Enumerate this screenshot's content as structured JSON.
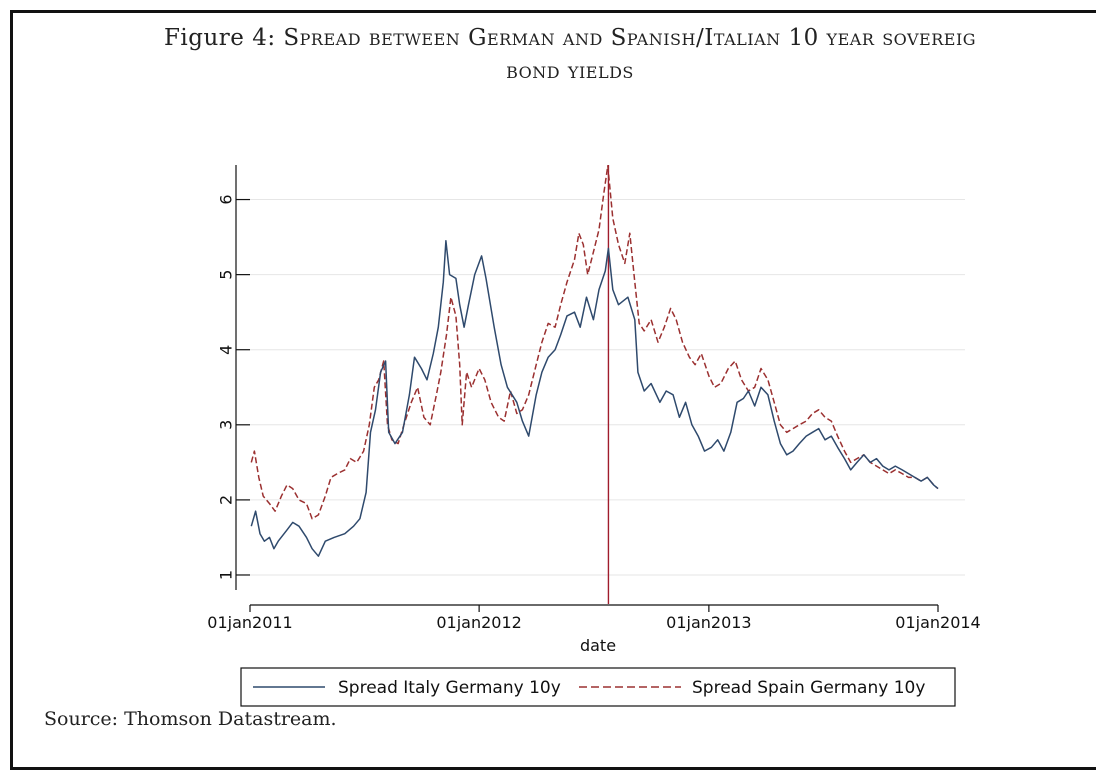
{
  "figure": {
    "title_prefix": "Figure 4:",
    "title_line1": "Spread between German and Spanish/Italian 10 year sovereig",
    "title_line2": "bond yields",
    "source": "Source: Thomson Datastream."
  },
  "chart_data": {
    "type": "line",
    "title": "",
    "xlabel": "date",
    "ylabel": "",
    "xlim": [
      "2011-01-01",
      "2014-01-01"
    ],
    "ylim": [
      0.8,
      6.5
    ],
    "yticks": [
      1,
      2,
      3,
      4,
      5,
      6
    ],
    "xticks": [
      "01jan2011",
      "01jan2012",
      "01jan2013",
      "01jan2014"
    ],
    "xtick_dates": [
      "2011-01-01",
      "2012-01-01",
      "2013-01-01",
      "2014-01-01"
    ],
    "grid": "horizontal",
    "legend_position": "bottom",
    "vline": {
      "x": "2012-07-25",
      "color": "#a01c2c"
    },
    "series": [
      {
        "name": "Spread Italy Germany 10y",
        "style": "solid",
        "color": "#2f4a6d",
        "points": [
          [
            "2011-01-03",
            1.65
          ],
          [
            "2011-01-10",
            1.85
          ],
          [
            "2011-01-17",
            1.55
          ],
          [
            "2011-01-24",
            1.45
          ],
          [
            "2011-02-01",
            1.5
          ],
          [
            "2011-02-08",
            1.35
          ],
          [
            "2011-02-15",
            1.45
          ],
          [
            "2011-03-01",
            1.6
          ],
          [
            "2011-03-10",
            1.7
          ],
          [
            "2011-03-20",
            1.65
          ],
          [
            "2011-04-01",
            1.5
          ],
          [
            "2011-04-10",
            1.35
          ],
          [
            "2011-04-20",
            1.25
          ],
          [
            "2011-05-01",
            1.45
          ],
          [
            "2011-05-15",
            1.5
          ],
          [
            "2011-06-01",
            1.55
          ],
          [
            "2011-06-15",
            1.65
          ],
          [
            "2011-06-25",
            1.75
          ],
          [
            "2011-07-05",
            2.1
          ],
          [
            "2011-07-12",
            2.9
          ],
          [
            "2011-07-20",
            3.2
          ],
          [
            "2011-07-28",
            3.7
          ],
          [
            "2011-08-05",
            3.85
          ],
          [
            "2011-08-10",
            2.9
          ],
          [
            "2011-08-20",
            2.75
          ],
          [
            "2011-09-01",
            2.9
          ],
          [
            "2011-09-12",
            3.4
          ],
          [
            "2011-09-20",
            3.9
          ],
          [
            "2011-10-01",
            3.75
          ],
          [
            "2011-10-10",
            3.6
          ],
          [
            "2011-10-20",
            3.95
          ],
          [
            "2011-10-28",
            4.3
          ],
          [
            "2011-11-05",
            4.9
          ],
          [
            "2011-11-09",
            5.45
          ],
          [
            "2011-11-15",
            5.0
          ],
          [
            "2011-11-25",
            4.95
          ],
          [
            "2011-12-01",
            4.6
          ],
          [
            "2011-12-08",
            4.3
          ],
          [
            "2011-12-15",
            4.6
          ],
          [
            "2011-12-25",
            5.0
          ],
          [
            "2012-01-05",
            5.25
          ],
          [
            "2012-01-12",
            4.95
          ],
          [
            "2012-01-25",
            4.3
          ],
          [
            "2012-02-05",
            3.8
          ],
          [
            "2012-02-15",
            3.5
          ],
          [
            "2012-03-01",
            3.3
          ],
          [
            "2012-03-10",
            3.05
          ],
          [
            "2012-03-20",
            2.85
          ],
          [
            "2012-04-01",
            3.4
          ],
          [
            "2012-04-10",
            3.7
          ],
          [
            "2012-04-20",
            3.9
          ],
          [
            "2012-05-01",
            4.0
          ],
          [
            "2012-05-10",
            4.2
          ],
          [
            "2012-05-20",
            4.45
          ],
          [
            "2012-06-01",
            4.5
          ],
          [
            "2012-06-10",
            4.3
          ],
          [
            "2012-06-20",
            4.7
          ],
          [
            "2012-07-01",
            4.4
          ],
          [
            "2012-07-10",
            4.8
          ],
          [
            "2012-07-20",
            5.05
          ],
          [
            "2012-07-25",
            5.35
          ],
          [
            "2012-08-01",
            4.8
          ],
          [
            "2012-08-10",
            4.6
          ],
          [
            "2012-08-25",
            4.7
          ],
          [
            "2012-09-05",
            4.4
          ],
          [
            "2012-09-10",
            3.7
          ],
          [
            "2012-09-20",
            3.45
          ],
          [
            "2012-10-01",
            3.55
          ],
          [
            "2012-10-15",
            3.3
          ],
          [
            "2012-10-25",
            3.45
          ],
          [
            "2012-11-05",
            3.4
          ],
          [
            "2012-11-15",
            3.1
          ],
          [
            "2012-11-25",
            3.3
          ],
          [
            "2012-12-05",
            3.0
          ],
          [
            "2012-12-15",
            2.85
          ],
          [
            "2012-12-25",
            2.65
          ],
          [
            "2013-01-05",
            2.7
          ],
          [
            "2013-01-15",
            2.8
          ],
          [
            "2013-01-25",
            2.65
          ],
          [
            "2013-02-05",
            2.9
          ],
          [
            "2013-02-15",
            3.3
          ],
          [
            "2013-02-25",
            3.35
          ],
          [
            "2013-03-05",
            3.45
          ],
          [
            "2013-03-15",
            3.25
          ],
          [
            "2013-03-25",
            3.5
          ],
          [
            "2013-04-05",
            3.4
          ],
          [
            "2013-04-15",
            3.05
          ],
          [
            "2013-04-25",
            2.75
          ],
          [
            "2013-05-05",
            2.6
          ],
          [
            "2013-05-15",
            2.65
          ],
          [
            "2013-05-25",
            2.75
          ],
          [
            "2013-06-05",
            2.85
          ],
          [
            "2013-06-15",
            2.9
          ],
          [
            "2013-06-25",
            2.95
          ],
          [
            "2013-07-05",
            2.8
          ],
          [
            "2013-07-15",
            2.85
          ],
          [
            "2013-07-25",
            2.7
          ],
          [
            "2013-08-05",
            2.55
          ],
          [
            "2013-08-15",
            2.4
          ],
          [
            "2013-08-25",
            2.5
          ],
          [
            "2013-09-05",
            2.6
          ],
          [
            "2013-09-15",
            2.5
          ],
          [
            "2013-09-25",
            2.55
          ],
          [
            "2013-10-05",
            2.45
          ],
          [
            "2013-10-15",
            2.4
          ],
          [
            "2013-10-25",
            2.45
          ],
          [
            "2013-11-05",
            2.4
          ],
          [
            "2013-11-15",
            2.35
          ],
          [
            "2013-11-25",
            2.3
          ],
          [
            "2013-12-05",
            2.25
          ],
          [
            "2013-12-15",
            2.3
          ],
          [
            "2013-12-25",
            2.2
          ],
          [
            "2014-01-01",
            2.15
          ]
        ]
      },
      {
        "name": "Spread Spain Germany 10y",
        "style": "dashed",
        "color": "#9b3030",
        "points": [
          [
            "2011-01-03",
            2.5
          ],
          [
            "2011-01-08",
            2.65
          ],
          [
            "2011-01-15",
            2.3
          ],
          [
            "2011-01-22",
            2.05
          ],
          [
            "2011-02-01",
            1.95
          ],
          [
            "2011-02-10",
            1.85
          ],
          [
            "2011-02-20",
            2.05
          ],
          [
            "2011-03-01",
            2.2
          ],
          [
            "2011-03-10",
            2.15
          ],
          [
            "2011-03-20",
            2.0
          ],
          [
            "2011-04-01",
            1.95
          ],
          [
            "2011-04-10",
            1.75
          ],
          [
            "2011-04-20",
            1.8
          ],
          [
            "2011-05-01",
            2.05
          ],
          [
            "2011-05-10",
            2.3
          ],
          [
            "2011-05-20",
            2.35
          ],
          [
            "2011-06-01",
            2.4
          ],
          [
            "2011-06-10",
            2.55
          ],
          [
            "2011-06-20",
            2.5
          ],
          [
            "2011-07-01",
            2.65
          ],
          [
            "2011-07-10",
            3.0
          ],
          [
            "2011-07-18",
            3.5
          ],
          [
            "2011-07-25",
            3.6
          ],
          [
            "2011-08-02",
            3.85
          ],
          [
            "2011-08-08",
            3.0
          ],
          [
            "2011-08-15",
            2.8
          ],
          [
            "2011-08-25",
            2.75
          ],
          [
            "2011-09-05",
            3.05
          ],
          [
            "2011-09-15",
            3.3
          ],
          [
            "2011-09-25",
            3.5
          ],
          [
            "2011-10-05",
            3.1
          ],
          [
            "2011-10-15",
            3.0
          ],
          [
            "2011-10-25",
            3.4
          ],
          [
            "2011-11-01",
            3.7
          ],
          [
            "2011-11-10",
            4.2
          ],
          [
            "2011-11-17",
            4.7
          ],
          [
            "2011-11-25",
            4.45
          ],
          [
            "2011-12-01",
            3.8
          ],
          [
            "2011-12-05",
            3.0
          ],
          [
            "2011-12-12",
            3.7
          ],
          [
            "2011-12-20",
            3.5
          ],
          [
            "2012-01-01",
            3.75
          ],
          [
            "2012-01-10",
            3.6
          ],
          [
            "2012-01-20",
            3.3
          ],
          [
            "2012-02-01",
            3.1
          ],
          [
            "2012-02-10",
            3.05
          ],
          [
            "2012-02-20",
            3.45
          ],
          [
            "2012-03-01",
            3.15
          ],
          [
            "2012-03-10",
            3.2
          ],
          [
            "2012-03-20",
            3.4
          ],
          [
            "2012-04-01",
            3.8
          ],
          [
            "2012-04-10",
            4.1
          ],
          [
            "2012-04-20",
            4.35
          ],
          [
            "2012-05-01",
            4.3
          ],
          [
            "2012-05-10",
            4.6
          ],
          [
            "2012-05-20",
            4.9
          ],
          [
            "2012-06-01",
            5.2
          ],
          [
            "2012-06-08",
            5.55
          ],
          [
            "2012-06-15",
            5.4
          ],
          [
            "2012-06-22",
            5.0
          ],
          [
            "2012-07-01",
            5.3
          ],
          [
            "2012-07-10",
            5.6
          ],
          [
            "2012-07-18",
            6.1
          ],
          [
            "2012-07-24",
            6.45
          ],
          [
            "2012-08-01",
            5.75
          ],
          [
            "2012-08-10",
            5.4
          ],
          [
            "2012-08-20",
            5.15
          ],
          [
            "2012-08-28",
            5.55
          ],
          [
            "2012-09-05",
            4.9
          ],
          [
            "2012-09-12",
            4.35
          ],
          [
            "2012-09-20",
            4.25
          ],
          [
            "2012-10-01",
            4.4
          ],
          [
            "2012-10-12",
            4.1
          ],
          [
            "2012-10-22",
            4.3
          ],
          [
            "2012-11-01",
            4.55
          ],
          [
            "2012-11-10",
            4.4
          ],
          [
            "2012-11-20",
            4.1
          ],
          [
            "2012-12-01",
            3.9
          ],
          [
            "2012-12-10",
            3.8
          ],
          [
            "2012-12-20",
            3.95
          ],
          [
            "2013-01-01",
            3.65
          ],
          [
            "2013-01-10",
            3.5
          ],
          [
            "2013-01-20",
            3.55
          ],
          [
            "2013-02-01",
            3.75
          ],
          [
            "2013-02-12",
            3.85
          ],
          [
            "2013-02-22",
            3.6
          ],
          [
            "2013-03-05",
            3.45
          ],
          [
            "2013-03-15",
            3.5
          ],
          [
            "2013-03-25",
            3.75
          ],
          [
            "2013-04-05",
            3.6
          ],
          [
            "2013-04-15",
            3.3
          ],
          [
            "2013-04-25",
            3.0
          ],
          [
            "2013-05-05",
            2.9
          ],
          [
            "2013-05-15",
            2.95
          ],
          [
            "2013-05-25",
            3.0
          ],
          [
            "2013-06-05",
            3.05
          ],
          [
            "2013-06-15",
            3.15
          ],
          [
            "2013-06-25",
            3.2
          ],
          [
            "2013-07-05",
            3.1
          ],
          [
            "2013-07-15",
            3.05
          ],
          [
            "2013-07-25",
            2.85
          ],
          [
            "2013-08-05",
            2.65
          ],
          [
            "2013-08-15",
            2.5
          ],
          [
            "2013-08-25",
            2.55
          ],
          [
            "2013-09-05",
            2.6
          ],
          [
            "2013-09-15",
            2.5
          ],
          [
            "2013-09-25",
            2.45
          ],
          [
            "2013-10-05",
            2.4
          ],
          [
            "2013-10-15",
            2.35
          ],
          [
            "2013-10-25",
            2.4
          ],
          [
            "2013-11-05",
            2.35
          ],
          [
            "2013-11-15",
            2.3
          ],
          [
            "2013-11-25",
            2.3
          ],
          [
            "2013-12-05",
            2.25
          ],
          [
            "2013-12-15",
            2.3
          ],
          [
            "2013-12-25",
            2.2
          ],
          [
            "2014-01-01",
            2.15
          ]
        ]
      }
    ]
  }
}
